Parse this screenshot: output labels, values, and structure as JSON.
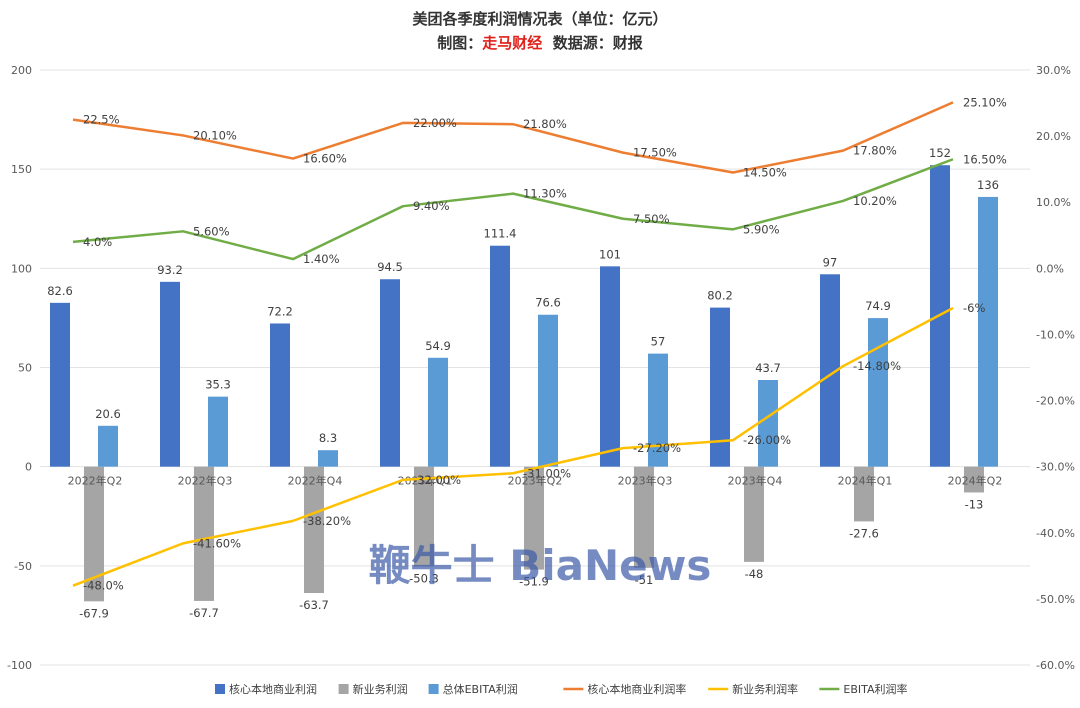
{
  "chart_data": {
    "type": "bar",
    "title": "美团各季度利润情况表（单位：亿元）",
    "subtitle": {
      "prefix": "制图：",
      "author": "走马财经",
      "suffix": "数据源：财报"
    },
    "watermark": "鞭牛士 BiaNews",
    "categories": [
      "2022年Q2",
      "2022年Q3",
      "2022年Q4",
      "2023年Q1",
      "2023年Q2",
      "2023年Q3",
      "2023年Q4",
      "2024年Q1",
      "2024年Q2"
    ],
    "left_axis": {
      "min": -100,
      "max": 200,
      "ticks": [
        200,
        150,
        100,
        50,
        0,
        -50,
        -100
      ]
    },
    "right_axis": {
      "min": -60,
      "max": 30,
      "ticks": [
        "30.0%",
        "20.0%",
        "10.0%",
        "0.0%",
        "-10.0%",
        "-20.0%",
        "-30.0%",
        "-40.0%",
        "-50.0%",
        "-60.0%"
      ]
    },
    "bar_series": [
      {
        "name": "核心本地商业利润",
        "color": "#4472c4",
        "values": [
          82.6,
          93.2,
          72.2,
          94.5,
          111.4,
          101,
          80.2,
          97,
          152
        ],
        "labels": [
          "82.6",
          "93.2",
          "72.2",
          "94.5",
          "111.4",
          "101",
          "80.2",
          "97",
          "152"
        ]
      },
      {
        "name": "新业务利润",
        "color": "#a5a5a5",
        "values": [
          -67.9,
          -67.7,
          -63.7,
          -50.3,
          -51.9,
          -51,
          -48,
          -27.6,
          -13
        ],
        "labels": [
          "-67.9",
          "-67.7",
          "-63.7",
          "-50.3",
          "-51.9",
          "-51",
          "-48",
          "-27.6",
          "-13"
        ]
      },
      {
        "name": "总体EBITA利润",
        "color": "#5b9bd5",
        "values": [
          20.6,
          35.3,
          8.3,
          54.9,
          76.6,
          57,
          43.7,
          74.9,
          136
        ],
        "labels": [
          "20.6",
          "35.3",
          "8.3",
          "54.9",
          "76.6",
          "57",
          "43.7",
          "74.9",
          "136"
        ]
      }
    ],
    "line_series": [
      {
        "name": "核心本地商业利润率",
        "color": "#ed7d31",
        "values": [
          22.5,
          20.1,
          16.6,
          22.0,
          21.8,
          17.5,
          14.5,
          17.8,
          25.1
        ],
        "labels": [
          "22.5%",
          "20.10%",
          "16.60%",
          "22.00%",
          "21.80%",
          "17.50%",
          "14.50%",
          "17.80%",
          "25.10%"
        ]
      },
      {
        "name": "新业务利润率",
        "color": "#ffc000",
        "values": [
          -48.0,
          -41.6,
          -38.2,
          -32.0,
          -31.0,
          -27.2,
          -26.0,
          -14.8,
          -6
        ],
        "labels": [
          "-48.0%",
          "-41.60%",
          "-38.20%",
          "-32.00%",
          "-31.00%",
          "-27.20%",
          "-26.00%",
          "-14.80%",
          "-6%"
        ]
      },
      {
        "name": "EBITA利润率",
        "color": "#70ad47",
        "values": [
          4.0,
          5.6,
          1.4,
          9.4,
          11.3,
          7.5,
          5.9,
          10.2,
          16.5
        ],
        "labels": [
          "4.0%",
          "5.60%",
          "1.40%",
          "9.40%",
          "11.30%",
          "7.50%",
          "5.90%",
          "10.20%",
          "16.50%"
        ]
      }
    ],
    "legend_position": "bottom",
    "grid": true
  }
}
